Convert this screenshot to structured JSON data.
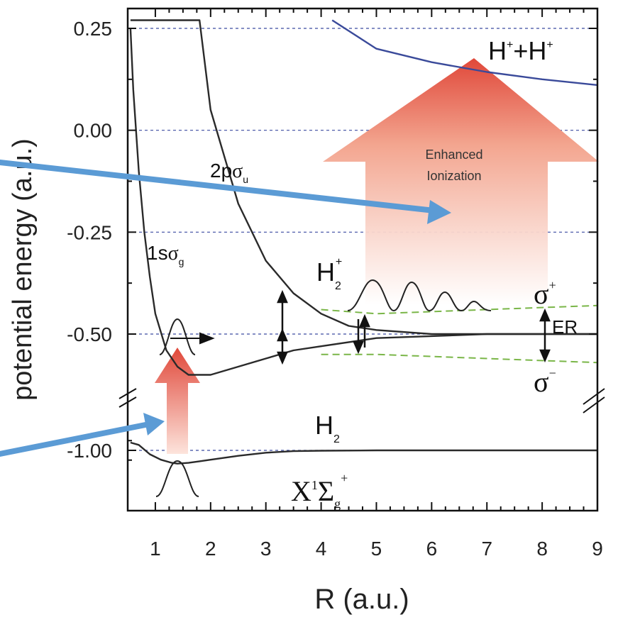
{
  "chart_data": {
    "type": "line",
    "title": "",
    "xlabel": "R (a.u.)",
    "ylabel": "potential energy (a.u.)",
    "xlim": [
      0.5,
      9
    ],
    "ylim_upper_segment": [
      -0.62,
      0.25
    ],
    "ylim_lower_segment": [
      -1.1,
      -0.9
    ],
    "axis_break": "y axis broken between -0.62 and -0.90",
    "x_ticks": [
      "1",
      "2",
      "3",
      "4",
      "5",
      "6",
      "7",
      "8",
      "9"
    ],
    "y_ticks": [
      "0.25",
      "0.00",
      "-0.25",
      "-0.50",
      "-1.00"
    ],
    "grid": "dashed horizontal lines at y ticks",
    "series": [
      {
        "name": "2pσu",
        "color": "#2a2a2a",
        "x": [
          0.55,
          0.7,
          0.9,
          1.1,
          1.3,
          1.5,
          1.8,
          2.0,
          2.5,
          3.0,
          3.5,
          4.0,
          4.5,
          5.0,
          6.0,
          7.0,
          8.0,
          9.0
        ],
        "y": [
          0.27,
          0.27,
          0.27,
          0.27,
          0.27,
          0.27,
          0.27,
          0.05,
          -0.18,
          -0.32,
          -0.4,
          -0.45,
          -0.48,
          -0.49,
          -0.5,
          -0.5,
          -0.5,
          -0.5
        ]
      },
      {
        "name": "1sσg",
        "color": "#2a2a2a",
        "x": [
          0.55,
          0.6,
          0.7,
          0.8,
          0.9,
          1.0,
          1.2,
          1.4,
          1.6,
          1.8,
          2.0,
          2.5,
          3.0,
          3.5,
          4.0,
          5.0,
          6.0,
          7.0,
          8.0,
          9.0
        ],
        "y": [
          0.25,
          0.1,
          -0.1,
          -0.25,
          -0.36,
          -0.45,
          -0.54,
          -0.58,
          -0.6,
          -0.6,
          -0.6,
          -0.58,
          -0.56,
          -0.54,
          -0.53,
          -0.51,
          -0.505,
          -0.5,
          -0.5,
          -0.5
        ]
      },
      {
        "name": "σ+",
        "color": "#7ab648",
        "dashed": true,
        "x": [
          4.0,
          5.0,
          6.0,
          7.0,
          8.0,
          9.0
        ],
        "y": [
          -0.44,
          -0.45,
          -0.445,
          -0.44,
          -0.435,
          -0.43
        ]
      },
      {
        "name": "σ-",
        "color": "#7ab648",
        "dashed": true,
        "x": [
          4.0,
          5.0,
          6.0,
          7.0,
          8.0,
          9.0
        ],
        "y": [
          -0.55,
          -0.55,
          -0.555,
          -0.56,
          -0.565,
          -0.57
        ]
      },
      {
        "name": "H++H+",
        "color": "#3a4a9a",
        "x": [
          4.2,
          5.0,
          6.0,
          7.0,
          8.0,
          9.0
        ],
        "y": [
          0.27,
          0.2,
          0.167,
          0.143,
          0.125,
          0.111
        ]
      },
      {
        "name": "X1Σg+",
        "color": "#2a2a2a",
        "x": [
          0.55,
          0.7,
          0.9,
          1.1,
          1.3,
          1.4,
          1.6,
          1.8,
          2.0,
          2.5,
          3.0,
          3.5,
          4.0,
          5.0,
          7.0,
          9.0
        ],
        "y": [
          -0.9,
          -0.93,
          -1.05,
          -1.12,
          -1.16,
          -1.17,
          -1.16,
          -1.14,
          -1.12,
          -1.07,
          -1.03,
          -1.01,
          -1.005,
          -1.0,
          -1.0,
          -1.0
        ]
      }
    ],
    "annotations": {
      "h_plus": "H",
      "h_plus_sup1": "+",
      "plus_sign": "+",
      "h_plus2": "H",
      "h_plus_sup2": "+",
      "enhanced_line1": "Enhanced",
      "enhanced_line2": "Ionization",
      "pso_2": "2p",
      "pso_sigma": "σ",
      "pso_sub": "u",
      "sso_1": "1s",
      "sso_sigma": "σ",
      "sso_sub": "g",
      "h2plus": "H",
      "h2plus_sub": "2",
      "h2plus_sup": "+",
      "sigma_plus": "σ",
      "sigma_plus_sup": "+",
      "sigma_minus": "σ",
      "sigma_minus_sup": "−",
      "er": "ER",
      "h2": "H",
      "h2_sub": "2",
      "x_state": "X",
      "x_state_sup": "1",
      "x_state_sigma": "Σ",
      "x_state_sub": "g",
      "x_state_sup2": "+"
    },
    "colors": {
      "arrow_blue": "#5b9bd5",
      "arrow_red_top": "#e0483a",
      "arrow_red_bottom": "#fde4dc",
      "grid": "#3a4aa0",
      "h_plus_curve": "#3a4a9a",
      "dashed_green": "#7ab648"
    }
  }
}
